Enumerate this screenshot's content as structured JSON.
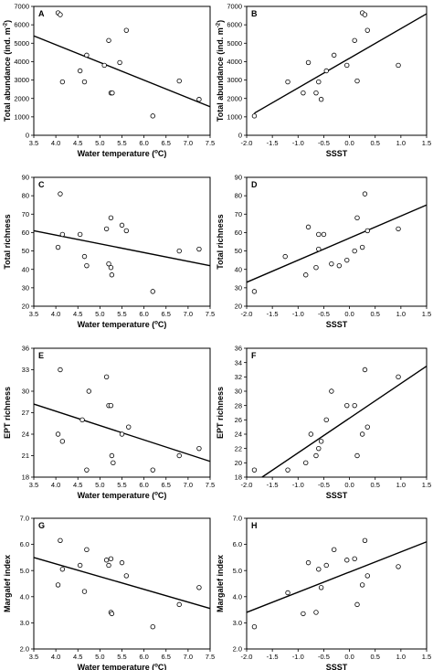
{
  "chart_data": [
    {
      "type": "scatter",
      "panel_letter": "A",
      "xlabel": "Water temperature (ºC)",
      "xlabel_main": "Water temperature (",
      "xlabel_sup": "o",
      "xlabel_tail": "C)",
      "ylabel": "Total abundance (ind. m⁻²)",
      "ylabel_main": "Total abundance (ind. m",
      "ylabel_sup": "-2",
      "ylabel_tail": ")",
      "xlim": [
        3.5,
        7.5
      ],
      "ylim": [
        0,
        7000
      ],
      "xticks": [
        "3.5",
        "4.0",
        "4.5",
        "5.0",
        "5.5",
        "6.0",
        "6.5",
        "7.0",
        "7.5"
      ],
      "yticks": [
        "0",
        "1000",
        "2000",
        "3000",
        "4000",
        "5000",
        "6000",
        "7000"
      ],
      "points": [
        {
          "x": 4.05,
          "y": 6650
        },
        {
          "x": 4.1,
          "y": 6550
        },
        {
          "x": 4.15,
          "y": 2900
        },
        {
          "x": 4.55,
          "y": 3500
        },
        {
          "x": 4.65,
          "y": 2900
        },
        {
          "x": 4.7,
          "y": 4350
        },
        {
          "x": 5.1,
          "y": 3800
        },
        {
          "x": 5.2,
          "y": 5150
        },
        {
          "x": 5.25,
          "y": 2300
        },
        {
          "x": 5.28,
          "y": 2300
        },
        {
          "x": 5.45,
          "y": 3950
        },
        {
          "x": 5.6,
          "y": 5700
        },
        {
          "x": 6.2,
          "y": 1050
        },
        {
          "x": 6.8,
          "y": 2950
        },
        {
          "x": 7.25,
          "y": 1950
        }
      ],
      "trend": [
        {
          "x": 3.5,
          "y": 5400
        },
        {
          "x": 7.5,
          "y": 1550
        }
      ]
    },
    {
      "type": "scatter",
      "panel_letter": "B",
      "xlabel": "SSST",
      "ylabel": "Total abundance (ind. m⁻²)",
      "ylabel_main": "Total abundance (ind. m",
      "ylabel_sup": "-2",
      "ylabel_tail": ")",
      "xlim": [
        -2.0,
        1.5
      ],
      "ylim": [
        0,
        7000
      ],
      "xticks": [
        "-2.0",
        "-1.5",
        "-1.0",
        "-0.5",
        "0.0",
        "0.5",
        "1.0",
        "1.5"
      ],
      "yticks": [
        "0",
        "1000",
        "2000",
        "3000",
        "4000",
        "5000",
        "6000",
        "7000"
      ],
      "points": [
        {
          "x": -1.85,
          "y": 1050
        },
        {
          "x": -1.2,
          "y": 2900
        },
        {
          "x": -0.9,
          "y": 2300
        },
        {
          "x": -0.8,
          "y": 3950
        },
        {
          "x": -0.65,
          "y": 2300
        },
        {
          "x": -0.6,
          "y": 2900
        },
        {
          "x": -0.55,
          "y": 1950
        },
        {
          "x": -0.45,
          "y": 3500
        },
        {
          "x": -0.3,
          "y": 4350
        },
        {
          "x": -0.05,
          "y": 3800
        },
        {
          "x": 0.1,
          "y": 5150
        },
        {
          "x": 0.15,
          "y": 2950
        },
        {
          "x": 0.25,
          "y": 6650
        },
        {
          "x": 0.3,
          "y": 6550
        },
        {
          "x": 0.35,
          "y": 5700
        },
        {
          "x": 0.95,
          "y": 3800
        }
      ],
      "trend": [
        {
          "x": -1.85,
          "y": 1200
        },
        {
          "x": 1.5,
          "y": 6600
        }
      ]
    },
    {
      "type": "scatter",
      "panel_letter": "C",
      "xlabel": "Water temperature (ºC)",
      "xlabel_main": "Water temperature (",
      "xlabel_sup": "o",
      "xlabel_tail": "C)",
      "ylabel": "Total richness",
      "xlim": [
        3.5,
        7.5
      ],
      "ylim": [
        20,
        90
      ],
      "xticks": [
        "3.5",
        "4.0",
        "4.5",
        "5.0",
        "5.5",
        "6.0",
        "6.5",
        "7.0",
        "7.5"
      ],
      "yticks": [
        "20",
        "30",
        "40",
        "50",
        "60",
        "70",
        "80",
        "90"
      ],
      "points": [
        {
          "x": 4.05,
          "y": 52
        },
        {
          "x": 4.1,
          "y": 81
        },
        {
          "x": 4.15,
          "y": 59
        },
        {
          "x": 4.55,
          "y": 59
        },
        {
          "x": 4.65,
          "y": 47
        },
        {
          "x": 4.7,
          "y": 42
        },
        {
          "x": 5.15,
          "y": 62
        },
        {
          "x": 5.2,
          "y": 43
        },
        {
          "x": 5.25,
          "y": 68
        },
        {
          "x": 5.25,
          "y": 41
        },
        {
          "x": 5.27,
          "y": 37
        },
        {
          "x": 5.5,
          "y": 64
        },
        {
          "x": 5.6,
          "y": 61
        },
        {
          "x": 6.2,
          "y": 28
        },
        {
          "x": 6.8,
          "y": 50
        },
        {
          "x": 7.25,
          "y": 51
        }
      ],
      "trend": [
        {
          "x": 3.5,
          "y": 61
        },
        {
          "x": 7.5,
          "y": 42
        }
      ]
    },
    {
      "type": "scatter",
      "panel_letter": "D",
      "xlabel": "SSST",
      "ylabel": "Total richness",
      "xlim": [
        -2.0,
        1.5
      ],
      "ylim": [
        20,
        90
      ],
      "xticks": [
        "-2.0",
        "-1.5",
        "-1.0",
        "-0.5",
        "0.0",
        "0.5",
        "1.0",
        "1.5"
      ],
      "yticks": [
        "20",
        "30",
        "40",
        "50",
        "60",
        "70",
        "80",
        "90"
      ],
      "points": [
        {
          "x": -1.85,
          "y": 28
        },
        {
          "x": -1.25,
          "y": 47
        },
        {
          "x": -0.85,
          "y": 37
        },
        {
          "x": -0.8,
          "y": 63
        },
        {
          "x": -0.65,
          "y": 41
        },
        {
          "x": -0.6,
          "y": 51
        },
        {
          "x": -0.6,
          "y": 59
        },
        {
          "x": -0.5,
          "y": 59
        },
        {
          "x": -0.35,
          "y": 43
        },
        {
          "x": -0.2,
          "y": 42
        },
        {
          "x": -0.05,
          "y": 45
        },
        {
          "x": 0.1,
          "y": 50
        },
        {
          "x": 0.15,
          "y": 68
        },
        {
          "x": 0.25,
          "y": 52
        },
        {
          "x": 0.3,
          "y": 81
        },
        {
          "x": 0.35,
          "y": 61
        },
        {
          "x": 0.95,
          "y": 62
        }
      ],
      "trend": [
        {
          "x": -2.0,
          "y": 33
        },
        {
          "x": 1.5,
          "y": 75
        }
      ]
    },
    {
      "type": "scatter",
      "panel_letter": "E",
      "xlabel": "Water temperature (ºC)",
      "xlabel_main": "Water temperature (",
      "xlabel_sup": "o",
      "xlabel_tail": "C)",
      "ylabel": "EPT richness",
      "xlim": [
        3.5,
        7.5
      ],
      "ylim": [
        18,
        36
      ],
      "xticks": [
        "3.5",
        "4.0",
        "4.5",
        "5.0",
        "5.5",
        "6.0",
        "6.5",
        "7.0",
        "7.5"
      ],
      "yticks": [
        "18",
        "21",
        "24",
        "27",
        "30",
        "33",
        "36"
      ],
      "points": [
        {
          "x": 4.05,
          "y": 24
        },
        {
          "x": 4.1,
          "y": 33
        },
        {
          "x": 4.15,
          "y": 23
        },
        {
          "x": 4.6,
          "y": 26
        },
        {
          "x": 4.7,
          "y": 19
        },
        {
          "x": 4.75,
          "y": 30
        },
        {
          "x": 5.15,
          "y": 32
        },
        {
          "x": 5.2,
          "y": 28
        },
        {
          "x": 5.25,
          "y": 28
        },
        {
          "x": 5.27,
          "y": 21
        },
        {
          "x": 5.3,
          "y": 20
        },
        {
          "x": 5.5,
          "y": 24
        },
        {
          "x": 5.65,
          "y": 25
        },
        {
          "x": 6.2,
          "y": 19
        },
        {
          "x": 6.8,
          "y": 21
        },
        {
          "x": 7.25,
          "y": 22
        }
      ],
      "trend": [
        {
          "x": 3.5,
          "y": 28.2
        },
        {
          "x": 7.5,
          "y": 20.2
        }
      ]
    },
    {
      "type": "scatter",
      "panel_letter": "F",
      "xlabel": "SSST",
      "ylabel": "EPT richness",
      "xlim": [
        -2.0,
        1.5
      ],
      "ylim": [
        18,
        36
      ],
      "xticks": [
        "-2.0",
        "-1.5",
        "-1.0",
        "-0.5",
        "0.0",
        "0.5",
        "1.0",
        "1.5"
      ],
      "yticks": [
        "18",
        "20",
        "22",
        "24",
        "26",
        "28",
        "30",
        "32",
        "34",
        "36"
      ],
      "points": [
        {
          "x": -1.85,
          "y": 19
        },
        {
          "x": -1.2,
          "y": 19
        },
        {
          "x": -0.85,
          "y": 20
        },
        {
          "x": -0.75,
          "y": 24
        },
        {
          "x": -0.65,
          "y": 21
        },
        {
          "x": -0.6,
          "y": 22
        },
        {
          "x": -0.55,
          "y": 23
        },
        {
          "x": -0.45,
          "y": 26
        },
        {
          "x": -0.35,
          "y": 30
        },
        {
          "x": -0.05,
          "y": 28
        },
        {
          "x": 0.1,
          "y": 28
        },
        {
          "x": 0.15,
          "y": 21
        },
        {
          "x": 0.25,
          "y": 24
        },
        {
          "x": 0.3,
          "y": 33
        },
        {
          "x": 0.35,
          "y": 25
        },
        {
          "x": 0.95,
          "y": 32
        }
      ],
      "trend": [
        {
          "x": -1.7,
          "y": 18
        },
        {
          "x": 1.5,
          "y": 33.5
        }
      ]
    },
    {
      "type": "scatter",
      "panel_letter": "G",
      "xlabel": "Water temperature (ºC)",
      "xlabel_main": "Water temperature (",
      "xlabel_sup": "o",
      "xlabel_tail": "C)",
      "ylabel": "Margalef index",
      "xlim": [
        3.5,
        7.5
      ],
      "ylim": [
        2.0,
        7.0
      ],
      "xticks": [
        "3.5",
        "4.0",
        "4.5",
        "5.0",
        "5.5",
        "6.0",
        "6.5",
        "7.0",
        "7.5"
      ],
      "yticks": [
        "2.0",
        "3.0",
        "4.0",
        "5.0",
        "6.0",
        "7.0"
      ],
      "points": [
        {
          "x": 4.05,
          "y": 4.45
        },
        {
          "x": 4.1,
          "y": 6.15
        },
        {
          "x": 4.15,
          "y": 5.05
        },
        {
          "x": 4.55,
          "y": 5.2
        },
        {
          "x": 4.65,
          "y": 4.2
        },
        {
          "x": 4.7,
          "y": 5.8
        },
        {
          "x": 5.15,
          "y": 5.4
        },
        {
          "x": 5.2,
          "y": 5.2
        },
        {
          "x": 5.25,
          "y": 5.45
        },
        {
          "x": 5.25,
          "y": 3.4
        },
        {
          "x": 5.27,
          "y": 3.35
        },
        {
          "x": 5.5,
          "y": 5.3
        },
        {
          "x": 5.6,
          "y": 4.8
        },
        {
          "x": 6.2,
          "y": 2.85
        },
        {
          "x": 6.8,
          "y": 3.7
        },
        {
          "x": 7.25,
          "y": 4.35
        }
      ],
      "trend": [
        {
          "x": 3.5,
          "y": 5.5
        },
        {
          "x": 7.5,
          "y": 3.55
        }
      ]
    },
    {
      "type": "scatter",
      "panel_letter": "H",
      "xlabel": "SSST",
      "ylabel": "Margalef index",
      "xlim": [
        -2.0,
        1.5
      ],
      "ylim": [
        2.0,
        7.0
      ],
      "xticks": [
        "-2.0",
        "-1.5",
        "-1.0",
        "-0.5",
        "0.0",
        "0.5",
        "1.0",
        "1.5"
      ],
      "yticks": [
        "2.0",
        "3.0",
        "4.0",
        "5.0",
        "6.0",
        "7.0"
      ],
      "points": [
        {
          "x": -1.85,
          "y": 2.85
        },
        {
          "x": -1.2,
          "y": 4.15
        },
        {
          "x": -0.9,
          "y": 3.35
        },
        {
          "x": -0.8,
          "y": 5.3
        },
        {
          "x": -0.65,
          "y": 3.4
        },
        {
          "x": -0.6,
          "y": 5.05
        },
        {
          "x": -0.55,
          "y": 4.35
        },
        {
          "x": -0.45,
          "y": 5.2
        },
        {
          "x": -0.3,
          "y": 5.8
        },
        {
          "x": -0.05,
          "y": 5.4
        },
        {
          "x": 0.1,
          "y": 5.45
        },
        {
          "x": 0.15,
          "y": 3.7
        },
        {
          "x": 0.25,
          "y": 4.45
        },
        {
          "x": 0.3,
          "y": 6.15
        },
        {
          "x": 0.35,
          "y": 4.8
        },
        {
          "x": 0.95,
          "y": 5.15
        }
      ],
      "trend": [
        {
          "x": -2.0,
          "y": 3.4
        },
        {
          "x": 1.5,
          "y": 6.1
        }
      ]
    }
  ]
}
